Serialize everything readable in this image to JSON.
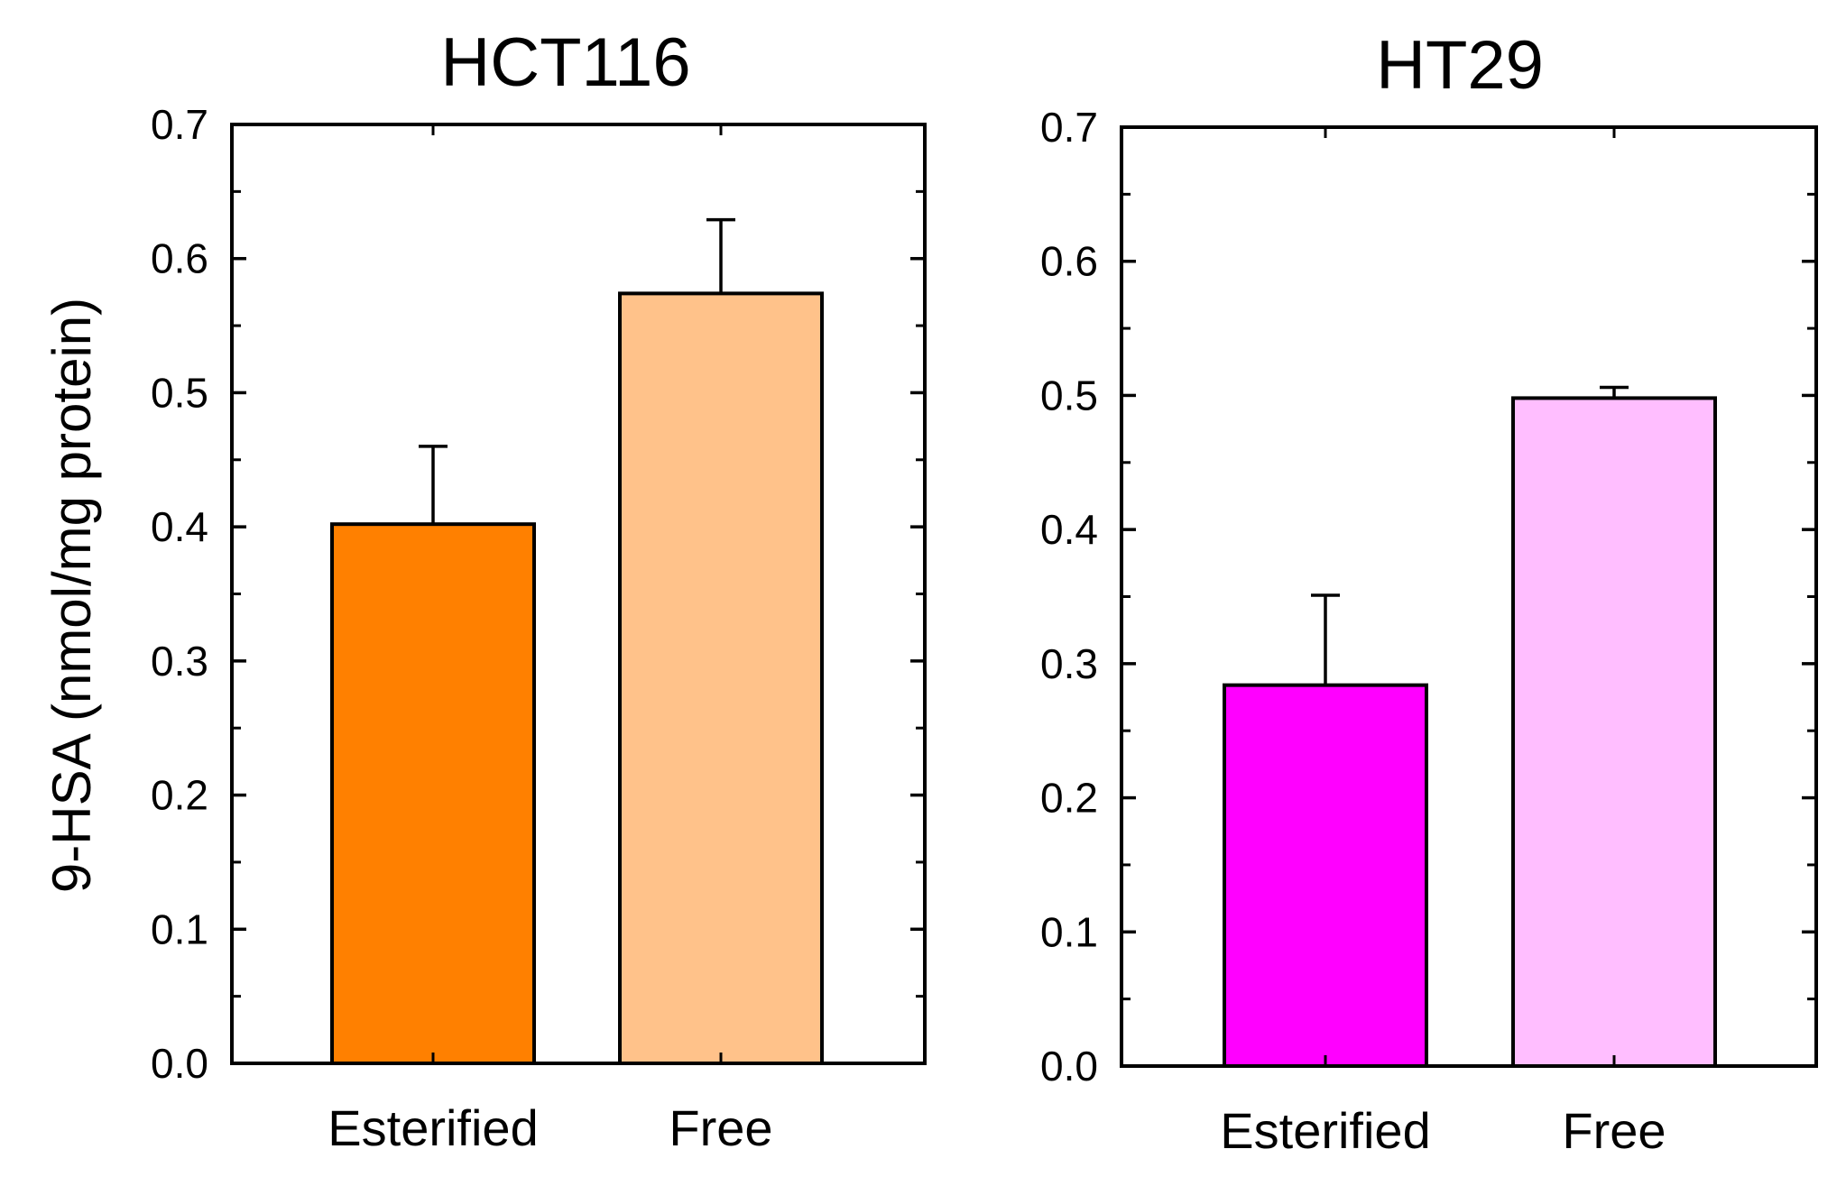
{
  "chart_data": [
    {
      "type": "bar",
      "title": "HCT116",
      "categories": [
        "Esterified",
        "Free"
      ],
      "values": [
        0.402,
        0.574
      ],
      "errors": [
        0.058,
        0.055
      ],
      "colors": [
        "#FF8000",
        "#FFC28A"
      ],
      "ylabel": "9-HSA (nmol/mg protein)",
      "xlabel": "",
      "ylim": [
        0.0,
        0.7
      ],
      "yticks": [
        "0.0",
        "0.1",
        "0.2",
        "0.3",
        "0.4",
        "0.5",
        "0.6",
        "0.7"
      ],
      "grid": false
    },
    {
      "type": "bar",
      "title": "HT29",
      "categories": [
        "Esterified",
        "Free"
      ],
      "values": [
        0.284,
        0.498
      ],
      "errors": [
        0.067,
        0.008
      ],
      "colors": [
        "#FF00FF",
        "#FFBEFF"
      ],
      "ylabel": "",
      "xlabel": "",
      "ylim": [
        0.0,
        0.7
      ],
      "yticks": [
        "0.0",
        "0.1",
        "0.2",
        "0.3",
        "0.4",
        "0.5",
        "0.6",
        "0.7"
      ],
      "grid": false
    }
  ]
}
